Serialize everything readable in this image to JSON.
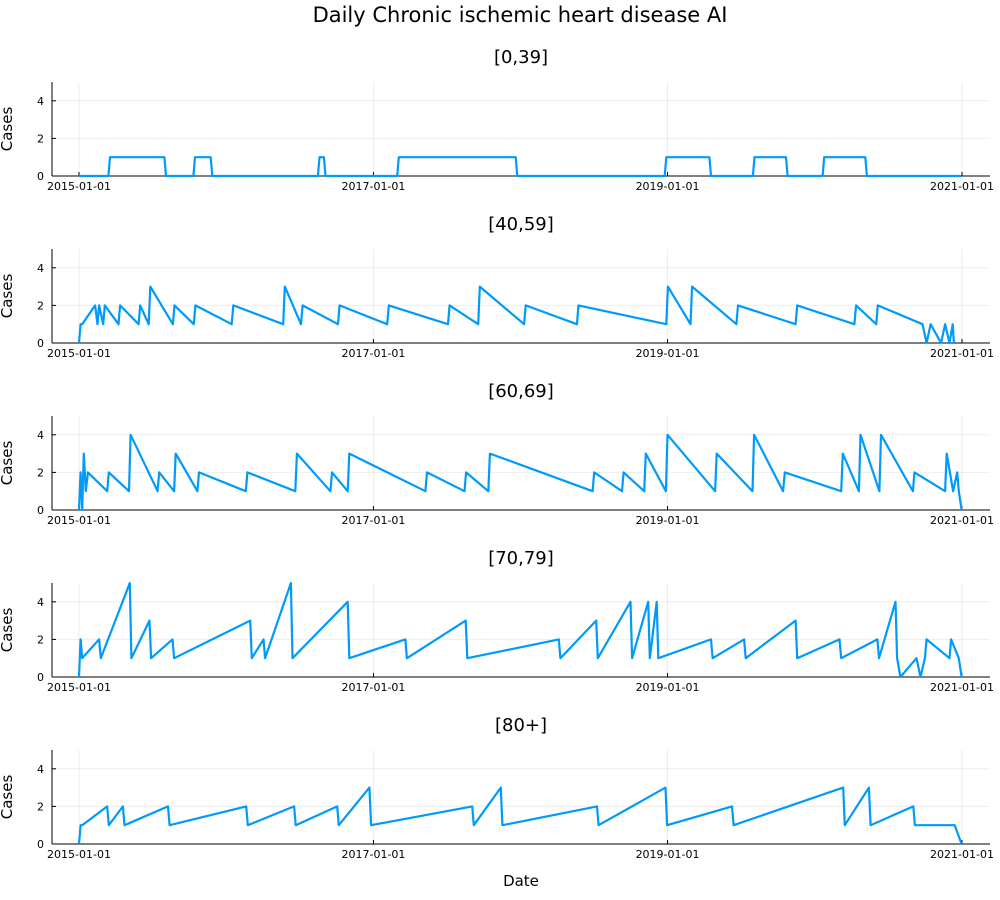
{
  "title": "Daily Chronic ischemic heart disease AI",
  "chart_data": [
    {
      "type": "line",
      "title": "[0,39]",
      "xlabel": "",
      "ylabel": "Cases",
      "ylim": [
        0,
        5
      ],
      "yticks": [
        0,
        2,
        4
      ],
      "xticks": [
        "2015-01-01",
        "2017-01-01",
        "2019-01-01",
        "2021-01-01"
      ],
      "xlim": [
        "2015-01-01",
        "2021-01-01"
      ],
      "grid": true,
      "color": "#009AFA",
      "series": [
        {
          "x": [
            "2015-01-01",
            "2015-03-15",
            "2015-03-19",
            "2015-08-01",
            "2015-08-05",
            "2015-10-12",
            "2015-10-16",
            "2015-11-24",
            "2015-11-28",
            "2016-08-16",
            "2016-08-20",
            "2016-08-31",
            "2016-09-04",
            "2017-03-01",
            "2017-03-05",
            "2017-12-20",
            "2017-12-24",
            "2018-12-25",
            "2018-12-29",
            "2019-04-15",
            "2019-04-19",
            "2019-08-01",
            "2019-08-05",
            "2019-10-22",
            "2019-10-26",
            "2020-01-21",
            "2020-01-25",
            "2020-05-06",
            "2020-05-10",
            "2020-12-31"
          ],
          "y": [
            0,
            0,
            1,
            1,
            0,
            0,
            1,
            1,
            0,
            0,
            1,
            1,
            0,
            0,
            1,
            1,
            0,
            0,
            1,
            1,
            0,
            0,
            1,
            1,
            0,
            0,
            1,
            1,
            0,
            0
          ]
        }
      ]
    },
    {
      "type": "line",
      "title": "[40,59]",
      "xlabel": "",
      "ylabel": "Cases",
      "ylim": [
        0,
        5
      ],
      "yticks": [
        0,
        2,
        4
      ],
      "xticks": [
        "2015-01-01",
        "2017-01-01",
        "2019-01-01",
        "2021-01-01"
      ],
      "xlim": [
        "2015-01-01",
        "2021-01-01"
      ],
      "grid": true,
      "color": "#009AFA",
      "series": [
        {
          "x": [
            "2015-01-01",
            "2015-01-05",
            "2015-01-09",
            "2015-02-10",
            "2015-02-16",
            "2015-02-20",
            "2015-03-02",
            "2015-03-06",
            "2015-04-09",
            "2015-04-13",
            "2015-05-29",
            "2015-06-02",
            "2015-06-23",
            "2015-06-27",
            "2015-08-22",
            "2015-08-26",
            "2015-10-13",
            "2015-10-17",
            "2016-01-15",
            "2016-01-19",
            "2016-05-22",
            "2016-05-26",
            "2016-07-05",
            "2016-07-09",
            "2016-10-05",
            "2016-10-09",
            "2017-02-04",
            "2017-02-08",
            "2017-07-05",
            "2017-07-09",
            "2017-09-18",
            "2017-09-22",
            "2018-01-10",
            "2018-01-14",
            "2018-05-21",
            "2018-05-25",
            "2018-12-29",
            "2019-01-02",
            "2019-02-27",
            "2019-03-03",
            "2019-06-21",
            "2019-06-25",
            "2019-11-15",
            "2019-11-19",
            "2020-04-09",
            "2020-04-13",
            "2020-06-02",
            "2020-06-06",
            "2020-09-25",
            "2020-10-05",
            "2020-10-15",
            "2020-11-10",
            "2020-11-20",
            "2020-12-01",
            "2020-12-09",
            "2020-12-12"
          ],
          "y": [
            0,
            1,
            1,
            2,
            1,
            2,
            1,
            2,
            1,
            2,
            1,
            2,
            1,
            3,
            1,
            2,
            1,
            2,
            1,
            2,
            1,
            3,
            1,
            2,
            1,
            2,
            1,
            2,
            1,
            2,
            1,
            3,
            1,
            2,
            1,
            2,
            1,
            3,
            1,
            3,
            1,
            2,
            1,
            2,
            1,
            2,
            1,
            2,
            1,
            0,
            1,
            0,
            1,
            0,
            1,
            0
          ]
        }
      ]
    },
    {
      "type": "line",
      "title": "[60,69]",
      "xlabel": "",
      "ylabel": "Cases",
      "ylim": [
        0,
        5
      ],
      "yticks": [
        0,
        2,
        4
      ],
      "xticks": [
        "2015-01-01",
        "2017-01-01",
        "2019-01-01",
        "2021-01-01"
      ],
      "xlim": [
        "2015-01-01",
        "2021-01-01"
      ],
      "grid": true,
      "color": "#009AFA",
      "series": [
        {
          "x": [
            "2015-01-01",
            "2015-01-05",
            "2015-01-09",
            "2015-01-13",
            "2015-01-18",
            "2015-01-23",
            "2015-03-12",
            "2015-03-16",
            "2015-05-05",
            "2015-05-09",
            "2015-07-15",
            "2015-07-19",
            "2015-08-25",
            "2015-08-29",
            "2015-10-22",
            "2015-10-26",
            "2016-02-19",
            "2016-02-23",
            "2016-06-21",
            "2016-06-25",
            "2016-09-16",
            "2016-09-20",
            "2016-10-29",
            "2016-11-02",
            "2017-05-10",
            "2017-05-14",
            "2017-08-15",
            "2017-08-19",
            "2017-10-13",
            "2017-10-17",
            "2018-06-29",
            "2018-07-03",
            "2018-09-10",
            "2018-09-14",
            "2018-11-04",
            "2018-11-08",
            "2018-12-28",
            "2019-01-01",
            "2019-04-29",
            "2019-05-03",
            "2019-07-31",
            "2019-08-04",
            "2019-10-15",
            "2019-10-19",
            "2020-03-07",
            "2020-03-11",
            "2020-04-20",
            "2020-04-24",
            "2020-06-10",
            "2020-06-14",
            "2020-09-01",
            "2020-09-05",
            "2020-11-20",
            "2020-11-24",
            "2020-12-10",
            "2020-12-20",
            "2020-12-24",
            "2020-12-31"
          ],
          "y": [
            0,
            2,
            0,
            3,
            1,
            2,
            1,
            2,
            1,
            4,
            1,
            2,
            1,
            3,
            1,
            2,
            1,
            2,
            1,
            3,
            1,
            2,
            1,
            3,
            1,
            2,
            1,
            2,
            1,
            3,
            1,
            2,
            1,
            2,
            1,
            3,
            1,
            4,
            1,
            3,
            1,
            4,
            1,
            2,
            1,
            3,
            1,
            4,
            1,
            4,
            1,
            2,
            1,
            3,
            1,
            2,
            1,
            0
          ]
        }
      ]
    },
    {
      "type": "line",
      "title": "[70,79]",
      "xlabel": "",
      "ylabel": "Cases",
      "ylim": [
        0,
        5
      ],
      "yticks": [
        0,
        2,
        4
      ],
      "xticks": [
        "2015-01-01",
        "2017-01-01",
        "2019-01-01",
        "2021-01-01"
      ],
      "xlim": [
        "2015-01-01",
        "2021-01-01"
      ],
      "grid": true,
      "color": "#009AFA",
      "series": [
        {
          "x": [
            "2015-01-01",
            "2015-01-05",
            "2015-01-09",
            "2015-02-20",
            "2015-02-24",
            "2015-05-07",
            "2015-05-11",
            "2015-06-25",
            "2015-06-29",
            "2015-08-21",
            "2015-08-25",
            "2016-03-01",
            "2016-03-05",
            "2016-04-03",
            "2016-04-07",
            "2016-06-10",
            "2016-06-14",
            "2016-10-29",
            "2016-11-02",
            "2017-03-21",
            "2017-03-25",
            "2017-08-18",
            "2017-08-22",
            "2018-04-06",
            "2018-04-10",
            "2018-07-08",
            "2018-07-12",
            "2018-10-01",
            "2018-10-05",
            "2018-11-14",
            "2018-11-18",
            "2018-12-05",
            "2018-12-09",
            "2019-04-19",
            "2019-04-23",
            "2019-07-10",
            "2019-07-14",
            "2019-11-15",
            "2019-11-19",
            "2020-03-03",
            "2020-03-07",
            "2020-06-05",
            "2020-06-09",
            "2020-07-20",
            "2020-07-24",
            "2020-08-01",
            "2020-09-10",
            "2020-09-20",
            "2020-10-01",
            "2020-10-05",
            "2020-12-01",
            "2020-12-05",
            "2020-12-24",
            "2020-12-31"
          ],
          "y": [
            0,
            2,
            1,
            2,
            1,
            5,
            1,
            3,
            1,
            2,
            1,
            3,
            1,
            2,
            1,
            5,
            1,
            4,
            1,
            2,
            1,
            3,
            1,
            2,
            1,
            3,
            1,
            4,
            1,
            4,
            1,
            4,
            1,
            2,
            1,
            2,
            1,
            3,
            1,
            2,
            1,
            2,
            1,
            4,
            1,
            0,
            1,
            0,
            1,
            2,
            1,
            2,
            1,
            0
          ]
        }
      ]
    },
    {
      "type": "line",
      "title": "[80+]",
      "xlabel": "Date",
      "ylabel": "Cases",
      "ylim": [
        0,
        5
      ],
      "yticks": [
        0,
        2,
        4
      ],
      "xticks": [
        "2015-01-01",
        "2017-01-01",
        "2019-01-01",
        "2021-01-01"
      ],
      "xlim": [
        "2015-01-01",
        "2021-01-01"
      ],
      "grid": true,
      "color": "#009AFA",
      "series": [
        {
          "x": [
            "2015-01-01",
            "2015-01-05",
            "2015-01-09",
            "2015-03-12",
            "2015-03-16",
            "2015-04-20",
            "2015-04-24",
            "2015-08-10",
            "2015-08-14",
            "2016-02-20",
            "2016-02-24",
            "2016-06-18",
            "2016-06-22",
            "2016-10-03",
            "2016-10-07",
            "2016-12-22",
            "2016-12-26",
            "2017-09-03",
            "2017-09-07",
            "2017-11-13",
            "2017-11-17",
            "2018-07-10",
            "2018-07-14",
            "2018-12-27",
            "2018-12-31",
            "2019-06-10",
            "2019-06-14",
            "2020-03-12",
            "2020-03-16",
            "2020-05-15",
            "2020-05-19",
            "2020-09-02",
            "2020-09-06",
            "2020-12-10",
            "2020-12-14",
            "2020-12-31"
          ],
          "y": [
            0,
            1,
            1,
            2,
            1,
            2,
            1,
            2,
            1,
            2,
            1,
            2,
            1,
            2,
            1,
            3,
            1,
            2,
            1,
            3,
            1,
            2,
            1,
            3,
            1,
            2,
            1,
            3,
            1,
            3,
            1,
            2,
            1,
            1,
            1,
            0
          ]
        }
      ]
    }
  ]
}
